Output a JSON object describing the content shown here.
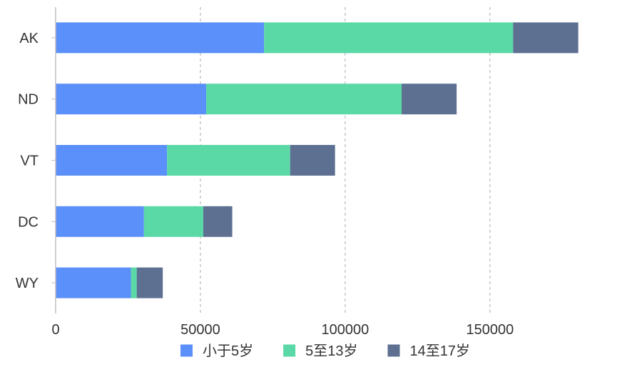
{
  "chart_data": {
    "type": "bar",
    "orientation": "horizontal",
    "stacked": true,
    "categories": [
      "AK",
      "ND",
      "VT",
      "DC",
      "WY"
    ],
    "series": [
      {
        "name": "小于5岁",
        "color": "#5B8FF9",
        "values": [
          72000,
          52000,
          38500,
          30500,
          26000
        ]
      },
      {
        "name": "5至13岁",
        "color": "#5AD8A6",
        "values": [
          86000,
          67500,
          42500,
          20500,
          2000
        ]
      },
      {
        "name": "14至17岁",
        "color": "#5D7092",
        "values": [
          22500,
          19000,
          15500,
          10000,
          9000
        ]
      }
    ],
    "xlim": [
      0,
      195000
    ],
    "x_ticks": [
      0,
      50000,
      100000,
      150000
    ],
    "x_tick_labels": [
      "0",
      "50000",
      "100000",
      "150000"
    ],
    "grid": "vertical dashed",
    "legend_position": "bottom-center",
    "title": "",
    "xlabel": "",
    "ylabel": ""
  }
}
